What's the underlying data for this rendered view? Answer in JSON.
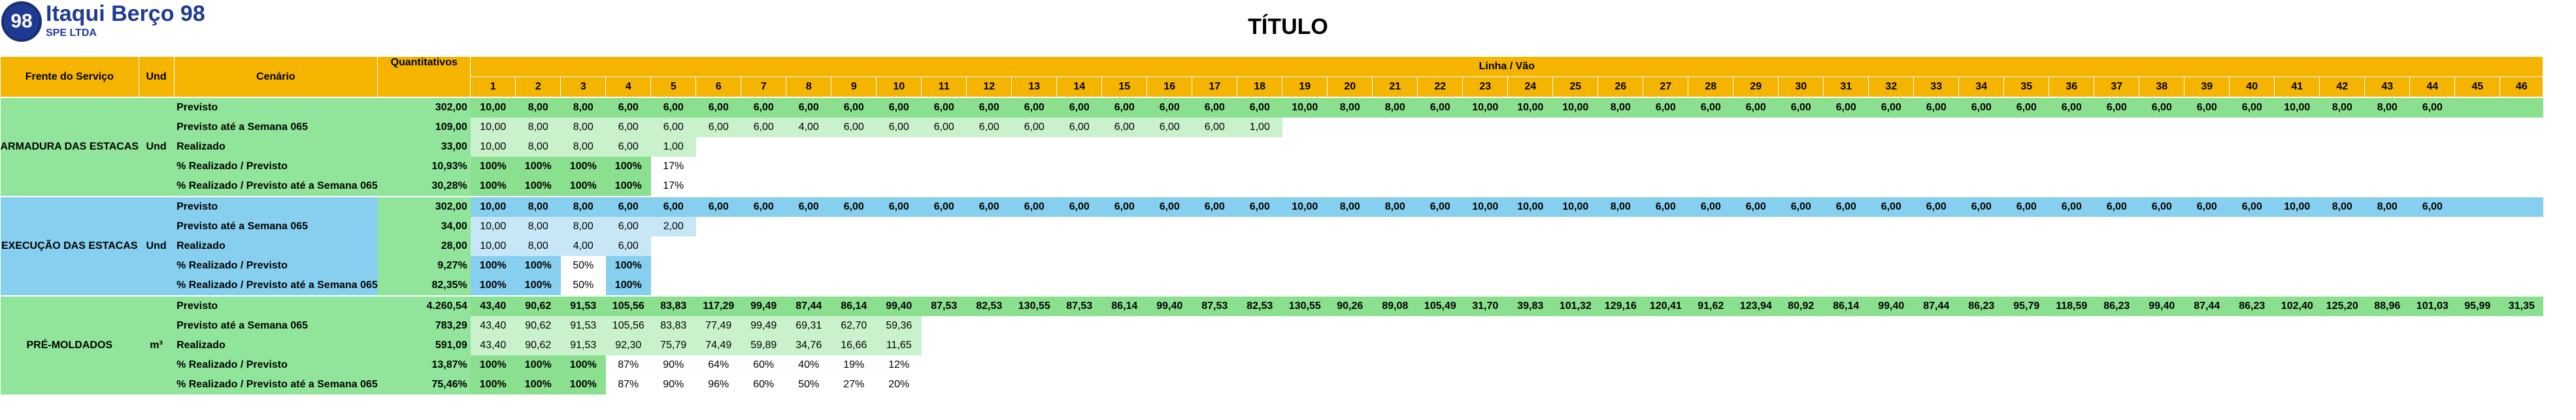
{
  "logo": {
    "badge": "98",
    "name": "Itaqui Berço 98",
    "sub": "SPE LTDA"
  },
  "title": "TÍTULO",
  "header": {
    "frente": "Frente do Serviço",
    "und": "Und",
    "cenario": "Cenário",
    "quant": "Quantitativos",
    "linha": "Linha / Vão",
    "cols": [
      "1",
      "2",
      "3",
      "4",
      "5",
      "6",
      "7",
      "8",
      "9",
      "10",
      "11",
      "12",
      "13",
      "14",
      "15",
      "16",
      "17",
      "18",
      "19",
      "20",
      "21",
      "22",
      "23",
      "24",
      "25",
      "26",
      "27",
      "28",
      "29",
      "30",
      "31",
      "32",
      "33",
      "34",
      "35",
      "36",
      "37",
      "38",
      "39",
      "40",
      "41",
      "42",
      "43",
      "44",
      "45",
      "46"
    ]
  },
  "sections": [
    {
      "frente": "ARMADURA DAS ESTACAS",
      "und": "Und",
      "color": "#90e59a",
      "rows": [
        {
          "cenario": "Previsto",
          "q": "302,00",
          "v": [
            "10,00",
            "8,00",
            "8,00",
            "6,00",
            "6,00",
            "6,00",
            "6,00",
            "6,00",
            "6,00",
            "6,00",
            "6,00",
            "6,00",
            "6,00",
            "6,00",
            "6,00",
            "6,00",
            "6,00",
            "6,00",
            "10,00",
            "8,00",
            "8,00",
            "6,00",
            "10,00",
            "10,00",
            "10,00",
            "8,00",
            "6,00",
            "6,00",
            "6,00",
            "6,00",
            "6,00",
            "6,00",
            "6,00",
            "6,00",
            "6,00",
            "6,00",
            "6,00",
            "6,00",
            "6,00",
            "6,00",
            "10,00",
            "8,00",
            "8,00",
            "6,00",
            "",
            ""
          ]
        },
        {
          "cenario": "Previsto até a Semana 065",
          "q": "109,00",
          "v": [
            "10,00",
            "8,00",
            "8,00",
            "6,00",
            "6,00",
            "6,00",
            "6,00",
            "4,00",
            "6,00",
            "6,00",
            "6,00",
            "6,00",
            "6,00",
            "6,00",
            "6,00",
            "6,00",
            "6,00",
            "1,00",
            "",
            "",
            "",
            "",
            "",
            "",
            "",
            "",
            "",
            "",
            "",
            "",
            "",
            "",
            "",
            "",
            "",
            "",
            "",
            "",
            "",
            "",
            "",
            "",
            "",
            "",
            "",
            ""
          ]
        },
        {
          "cenario": "Realizado",
          "q": "33,00",
          "v": [
            "10,00",
            "8,00",
            "8,00",
            "6,00",
            "1,00",
            "",
            "",
            "",
            "",
            "",
            "",
            "",
            "",
            "",
            "",
            "",
            "",
            "",
            "",
            "",
            "",
            "",
            "",
            "",
            "",
            "",
            "",
            "",
            "",
            "",
            "",
            "",
            "",
            "",
            "",
            "",
            "",
            "",
            "",
            "",
            "",
            "",
            "",
            "",
            "",
            ""
          ]
        },
        {
          "cenario": "% Realizado / Previsto",
          "q": "10,93%",
          "v": [
            "100%",
            "100%",
            "100%",
            "100%",
            "17%",
            "",
            "",
            "",
            "",
            "",
            "",
            "",
            "",
            "",
            "",
            "",
            "",
            "",
            "",
            "",
            "",
            "",
            "",
            "",
            "",
            "",
            "",
            "",
            "",
            "",
            "",
            "",
            "",
            "",
            "",
            "",
            "",
            "",
            "",
            "",
            "",
            "",
            "",
            "",
            "",
            ""
          ]
        },
        {
          "cenario": "% Realizado / Previsto até a Semana 065",
          "q": "30,28%",
          "v": [
            "100%",
            "100%",
            "100%",
            "100%",
            "17%",
            "",
            "",
            "",
            "",
            "",
            "",
            "",
            "",
            "",
            "",
            "",
            "",
            "",
            "",
            "",
            "",
            "",
            "",
            "",
            "",
            "",
            "",
            "",
            "",
            "",
            "",
            "",
            "",
            "",
            "",
            "",
            "",
            "",
            "",
            "",
            "",
            "",
            "",
            "",
            "",
            ""
          ]
        }
      ]
    },
    {
      "frente": "EXECUÇÃO DAS ESTACAS",
      "und": "Und",
      "color": "#87cfee",
      "rows": [
        {
          "cenario": "Previsto",
          "q": "302,00",
          "v": [
            "10,00",
            "8,00",
            "8,00",
            "6,00",
            "6,00",
            "6,00",
            "6,00",
            "6,00",
            "6,00",
            "6,00",
            "6,00",
            "6,00",
            "6,00",
            "6,00",
            "6,00",
            "6,00",
            "6,00",
            "6,00",
            "10,00",
            "8,00",
            "8,00",
            "6,00",
            "10,00",
            "10,00",
            "10,00",
            "8,00",
            "6,00",
            "6,00",
            "6,00",
            "6,00",
            "6,00",
            "6,00",
            "6,00",
            "6,00",
            "6,00",
            "6,00",
            "6,00",
            "6,00",
            "6,00",
            "6,00",
            "10,00",
            "8,00",
            "8,00",
            "6,00",
            "",
            ""
          ]
        },
        {
          "cenario": "Previsto até a Semana 065",
          "q": "34,00",
          "v": [
            "10,00",
            "8,00",
            "8,00",
            "6,00",
            "2,00",
            "",
            "",
            "",
            "",
            "",
            "",
            "",
            "",
            "",
            "",
            "",
            "",
            "",
            "",
            "",
            "",
            "",
            "",
            "",
            "",
            "",
            "",
            "",
            "",
            "",
            "",
            "",
            "",
            "",
            "",
            "",
            "",
            "",
            "",
            "",
            "",
            "",
            "",
            "",
            "",
            ""
          ]
        },
        {
          "cenario": "Realizado",
          "q": "28,00",
          "v": [
            "10,00",
            "8,00",
            "4,00",
            "6,00",
            "",
            "",
            "",
            "",
            "",
            "",
            "",
            "",
            "",
            "",
            "",
            "",
            "",
            "",
            "",
            "",
            "",
            "",
            "",
            "",
            "",
            "",
            "",
            "",
            "",
            "",
            "",
            "",
            "",
            "",
            "",
            "",
            "",
            "",
            "",
            "",
            "",
            "",
            "",
            "",
            "",
            ""
          ]
        },
        {
          "cenario": "% Realizado / Previsto",
          "q": "9,27%",
          "v": [
            "100%",
            "100%",
            "50%",
            "100%",
            "",
            "",
            "",
            "",
            "",
            "",
            "",
            "",
            "",
            "",
            "",
            "",
            "",
            "",
            "",
            "",
            "",
            "",
            "",
            "",
            "",
            "",
            "",
            "",
            "",
            "",
            "",
            "",
            "",
            "",
            "",
            "",
            "",
            "",
            "",
            "",
            "",
            "",
            "",
            "",
            "",
            ""
          ]
        },
        {
          "cenario": "% Realizado / Previsto até a Semana 065",
          "q": "82,35%",
          "v": [
            "100%",
            "100%",
            "50%",
            "100%",
            "",
            "",
            "",
            "",
            "",
            "",
            "",
            "",
            "",
            "",
            "",
            "",
            "",
            "",
            "",
            "",
            "",
            "",
            "",
            "",
            "",
            "",
            "",
            "",
            "",
            "",
            "",
            "",
            "",
            "",
            "",
            "",
            "",
            "",
            "",
            "",
            "",
            "",
            "",
            "",
            "",
            ""
          ]
        }
      ]
    },
    {
      "frente": "PRÉ-MOLDADOS",
      "und": "m³",
      "color": "#90e59a",
      "rows": [
        {
          "cenario": "Previsto",
          "q": "4.260,54",
          "v": [
            "43,40",
            "90,62",
            "91,53",
            "105,56",
            "83,83",
            "117,29",
            "99,49",
            "87,44",
            "86,14",
            "99,40",
            "87,53",
            "82,53",
            "130,55",
            "87,53",
            "86,14",
            "99,40",
            "87,53",
            "82,53",
            "130,55",
            "90,26",
            "89,08",
            "105,49",
            "31,70",
            "39,83",
            "101,32",
            "129,16",
            "120,41",
            "91,62",
            "123,94",
            "80,92",
            "86,14",
            "99,40",
            "87,44",
            "86,23",
            "95,79",
            "118,59",
            "86,23",
            "99,40",
            "87,44",
            "86,23",
            "102,40",
            "125,20",
            "88,96",
            "101,03",
            "95,99",
            "31,35"
          ]
        },
        {
          "cenario": "Previsto até a Semana 065",
          "q": "783,29",
          "v": [
            "43,40",
            "90,62",
            "91,53",
            "105,56",
            "83,83",
            "77,49",
            "99,49",
            "69,31",
            "62,70",
            "59,36",
            "",
            "",
            "",
            "",
            "",
            "",
            "",
            "",
            "",
            "",
            "",
            "",
            "",
            "",
            "",
            "",
            "",
            "",
            "",
            "",
            "",
            "",
            "",
            "",
            "",
            "",
            "",
            "",
            "",
            "",
            "",
            "",
            "",
            "",
            "",
            ""
          ]
        },
        {
          "cenario": "Realizado",
          "q": "591,09",
          "v": [
            "43,40",
            "90,62",
            "91,53",
            "92,30",
            "75,79",
            "74,49",
            "59,89",
            "34,76",
            "16,66",
            "11,65",
            "",
            "",
            "",
            "",
            "",
            "",
            "",
            "",
            "",
            "",
            "",
            "",
            "",
            "",
            "",
            "",
            "",
            "",
            "",
            "",
            "",
            "",
            "",
            "",
            "",
            "",
            "",
            "",
            "",
            "",
            "",
            "",
            "",
            "",
            "",
            ""
          ]
        },
        {
          "cenario": "% Realizado / Previsto",
          "q": "13,87%",
          "v": [
            "100%",
            "100%",
            "100%",
            "87%",
            "90%",
            "64%",
            "60%",
            "40%",
            "19%",
            "12%",
            "",
            "",
            "",
            "",
            "",
            "",
            "",
            "",
            "",
            "",
            "",
            "",
            "",
            "",
            "",
            "",
            "",
            "",
            "",
            "",
            "",
            "",
            "",
            "",
            "",
            "",
            "",
            "",
            "",
            "",
            "",
            "",
            "",
            "",
            "",
            ""
          ]
        },
        {
          "cenario": "% Realizado / Previsto até a Semana 065",
          "q": "75,46%",
          "v": [
            "100%",
            "100%",
            "100%",
            "87%",
            "90%",
            "96%",
            "60%",
            "50%",
            "27%",
            "20%",
            "",
            "",
            "",
            "",
            "",
            "",
            "",
            "",
            "",
            "",
            "",
            "",
            "",
            "",
            "",
            "",
            "",
            "",
            "",
            "",
            "",
            "",
            "",
            "",
            "",
            "",
            "",
            "",
            "",
            "",
            "",
            "",
            "",
            "",
            "",
            ""
          ]
        }
      ]
    }
  ]
}
